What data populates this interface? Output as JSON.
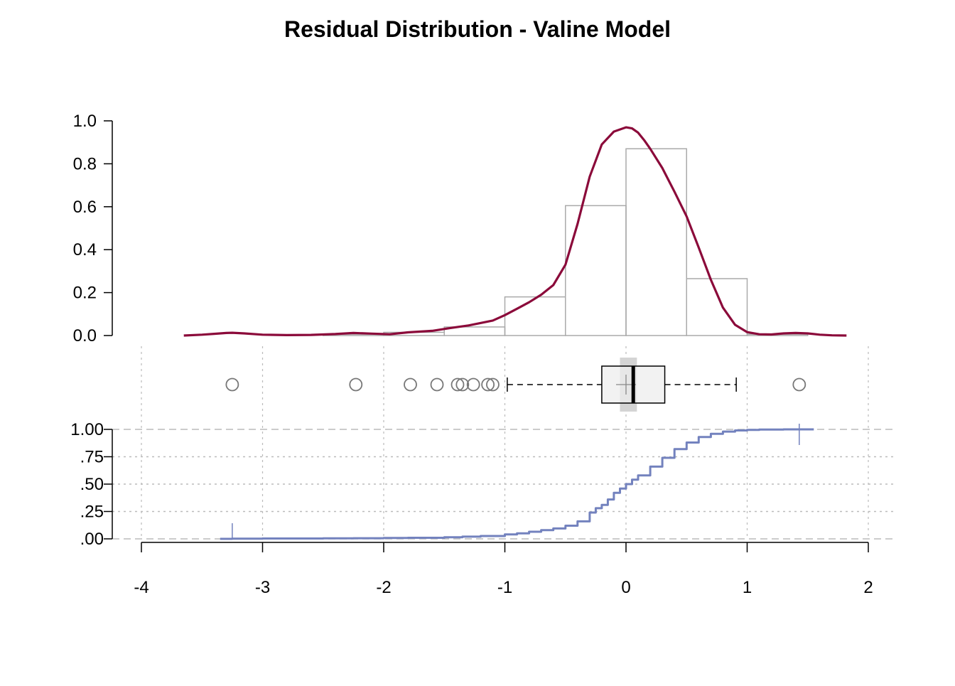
{
  "chart_data": {
    "type": "histogram-boxplot-ecdf",
    "title": "Residual Distribution - Valine Model",
    "xlim": [
      -4,
      2
    ],
    "x_ticks": [
      -4,
      -3,
      -2,
      -1,
      0,
      1,
      2
    ],
    "x_tick_labels": [
      "-4",
      "-3",
      "-2",
      "-1",
      "0",
      "1",
      "2"
    ],
    "grid": true,
    "colors": {
      "density": "#8b0a3a",
      "histogram": "#aaaaaa",
      "ecdf": "#7382be",
      "box_fill": "#eeeeee",
      "outlier": "#777777",
      "grid": "#bbbbbb"
    },
    "histogram": {
      "ylim": [
        0,
        1.0
      ],
      "y_ticks": [
        0,
        0.2,
        0.4,
        0.6,
        0.8,
        1.0
      ],
      "y_tick_labels": [
        "0.0",
        "0.2",
        "0.4",
        "0.6",
        "0.8",
        "1.0"
      ],
      "bins": [
        {
          "x0": -3.5,
          "x1": -3.0,
          "density": 0.0
        },
        {
          "x0": -3.0,
          "x1": -2.5,
          "density": 0.0
        },
        {
          "x0": -2.5,
          "x1": -2.0,
          "density": 0.006
        },
        {
          "x0": -2.0,
          "x1": -1.5,
          "density": 0.015
        },
        {
          "x0": -1.5,
          "x1": -1.0,
          "density": 0.04
        },
        {
          "x0": -1.0,
          "x1": -0.5,
          "density": 0.18
        },
        {
          "x0": -0.5,
          "x1": 0.0,
          "density": 0.605
        },
        {
          "x0": 0.0,
          "x1": 0.5,
          "density": 0.87
        },
        {
          "x0": 0.5,
          "x1": 1.0,
          "density": 0.265
        },
        {
          "x0": 1.0,
          "x1": 1.5,
          "density": 0.006
        }
      ]
    },
    "density_curve": {
      "x": [
        -3.65,
        -3.5,
        -3.4,
        -3.3,
        -3.25,
        -3.15,
        -3.0,
        -2.8,
        -2.6,
        -2.4,
        -2.25,
        -2.1,
        -1.95,
        -1.8,
        -1.6,
        -1.45,
        -1.3,
        -1.1,
        -1.0,
        -0.9,
        -0.8,
        -0.7,
        -0.6,
        -0.5,
        -0.4,
        -0.3,
        -0.2,
        -0.1,
        0.0,
        0.05,
        0.1,
        0.15,
        0.2,
        0.3,
        0.4,
        0.5,
        0.6,
        0.7,
        0.8,
        0.9,
        1.0,
        1.1,
        1.2,
        1.3,
        1.4,
        1.5,
        1.6,
        1.7,
        1.82
      ],
      "y": [
        0.0,
        0.004,
        0.008,
        0.012,
        0.013,
        0.01,
        0.004,
        0.002,
        0.003,
        0.007,
        0.012,
        0.009,
        0.006,
        0.015,
        0.022,
        0.035,
        0.047,
        0.07,
        0.095,
        0.125,
        0.155,
        0.19,
        0.235,
        0.33,
        0.52,
        0.74,
        0.89,
        0.95,
        0.97,
        0.965,
        0.945,
        0.91,
        0.87,
        0.78,
        0.67,
        0.555,
        0.41,
        0.26,
        0.13,
        0.05,
        0.016,
        0.006,
        0.005,
        0.01,
        0.012,
        0.01,
        0.004,
        0.001,
        0.0
      ]
    },
    "boxplot": {
      "whisker_low": -0.98,
      "q1": -0.2,
      "median": 0.06,
      "q3": 0.32,
      "whisker_high": 0.91,
      "mean": 0.0,
      "median_ci": [
        -0.05,
        0.09
      ],
      "outliers": [
        -3.25,
        -2.23,
        -1.78,
        -1.56,
        -1.39,
        -1.35,
        -1.26,
        -1.14,
        -1.1,
        1.43
      ]
    },
    "ecdf": {
      "ylim": [
        0,
        1
      ],
      "y_ticks": [
        0,
        0.25,
        0.5,
        0.75,
        1.0
      ],
      "y_tick_labels": [
        ".00",
        ".25",
        ".50",
        ".75",
        "1.00"
      ],
      "x": [
        -3.35,
        -3.25,
        -3.0,
        -2.5,
        -2.25,
        -2.0,
        -1.8,
        -1.5,
        -1.35,
        -1.2,
        -1.0,
        -0.9,
        -0.8,
        -0.7,
        -0.6,
        -0.5,
        -0.4,
        -0.3,
        -0.25,
        -0.2,
        -0.15,
        -0.1,
        -0.05,
        0.0,
        0.05,
        0.1,
        0.2,
        0.3,
        0.4,
        0.5,
        0.6,
        0.7,
        0.8,
        0.9,
        1.0,
        1.1,
        1.2,
        1.3,
        1.43,
        1.55
      ],
      "y": [
        0.0,
        0.002,
        0.003,
        0.005,
        0.006,
        0.008,
        0.01,
        0.014,
        0.02,
        0.026,
        0.04,
        0.05,
        0.065,
        0.08,
        0.095,
        0.12,
        0.16,
        0.24,
        0.28,
        0.31,
        0.36,
        0.42,
        0.46,
        0.5,
        0.54,
        0.58,
        0.66,
        0.74,
        0.82,
        0.88,
        0.93,
        0.96,
        0.98,
        0.99,
        0.995,
        0.998,
        0.999,
        1.0,
        1.0,
        1.0
      ],
      "range_marks": [
        -3.25,
        1.43
      ]
    }
  }
}
